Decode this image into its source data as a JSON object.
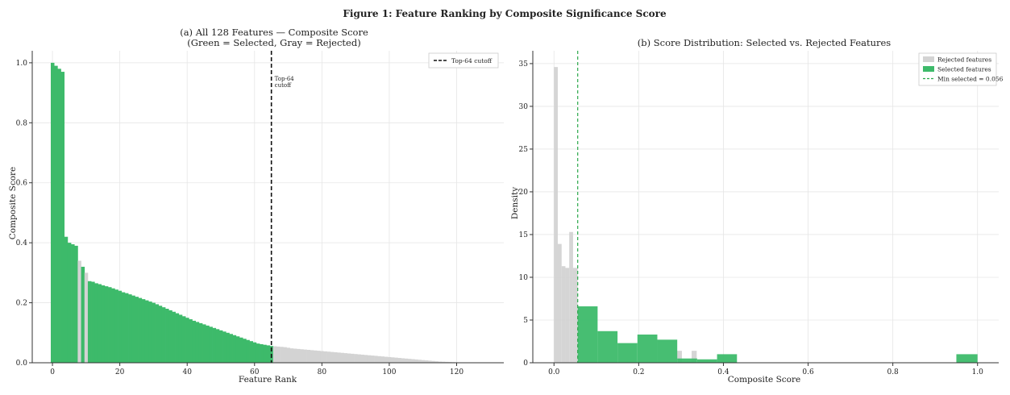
{
  "figure": {
    "title": "Figure 1: Feature Ranking by Composite Significance Score"
  },
  "colors": {
    "selected": "#3dba6a",
    "rejected": "#d3d3d3",
    "cutoff": "#111111",
    "min_line": "#2aa84a",
    "grid": "#e6e6e6",
    "axis": "#333333"
  },
  "chart_data": [
    {
      "type": "bar",
      "title_line1": "(a) All 128 Features — Composite Score",
      "title_line2": "(Green = Selected, Gray = Rejected)",
      "xlabel": "Feature Rank",
      "ylabel": "Composite Score",
      "xlim": [
        -6,
        134
      ],
      "ylim": [
        0,
        1.04
      ],
      "xticks": [
        0,
        20,
        40,
        60,
        80,
        100,
        120
      ],
      "yticks": [
        0.0,
        0.2,
        0.4,
        0.6,
        0.8,
        1.0
      ],
      "grid": true,
      "legend": {
        "position": "top-right",
        "entries": [
          "Top-64 cutoff"
        ]
      },
      "cutoff_rank": 65,
      "annotation": [
        "Top-64",
        "cutoff"
      ],
      "series": [
        {
          "name": "Selected",
          "color": "#3dba6a"
        },
        {
          "name": "Rejected",
          "color": "#d3d3d3"
        }
      ],
      "ranks": [
        0,
        1,
        2,
        3,
        4,
        5,
        6,
        7,
        8,
        9,
        10,
        11,
        12,
        13,
        14,
        15,
        16,
        17,
        18,
        19,
        20,
        21,
        22,
        23,
        24,
        25,
        26,
        27,
        28,
        29,
        30,
        31,
        32,
        33,
        34,
        35,
        36,
        37,
        38,
        39,
        40,
        41,
        42,
        43,
        44,
        45,
        46,
        47,
        48,
        49,
        50,
        51,
        52,
        53,
        54,
        55,
        56,
        57,
        58,
        59,
        60,
        61,
        62,
        63,
        64,
        65,
        66,
        67,
        68,
        69,
        70,
        71,
        72,
        73,
        74,
        75,
        76,
        77,
        78,
        79,
        80,
        81,
        82,
        83,
        84,
        85,
        86,
        87,
        88,
        89,
        90,
        91,
        92,
        93,
        94,
        95,
        96,
        97,
        98,
        99,
        100,
        101,
        102,
        103,
        104,
        105,
        106,
        107,
        108,
        109,
        110,
        111,
        112,
        113,
        114,
        115,
        116,
        117,
        118,
        119,
        120,
        121,
        122,
        123,
        124,
        125,
        126,
        127
      ],
      "values": [
        1.0,
        0.99,
        0.98,
        0.97,
        0.42,
        0.4,
        0.395,
        0.39,
        0.34,
        0.32,
        0.3,
        0.272,
        0.27,
        0.265,
        0.262,
        0.258,
        0.255,
        0.252,
        0.248,
        0.244,
        0.24,
        0.235,
        0.232,
        0.228,
        0.224,
        0.22,
        0.216,
        0.212,
        0.208,
        0.204,
        0.2,
        0.195,
        0.19,
        0.185,
        0.18,
        0.175,
        0.17,
        0.165,
        0.16,
        0.155,
        0.15,
        0.145,
        0.14,
        0.136,
        0.132,
        0.128,
        0.124,
        0.12,
        0.116,
        0.112,
        0.108,
        0.104,
        0.1,
        0.096,
        0.092,
        0.088,
        0.084,
        0.08,
        0.076,
        0.072,
        0.068,
        0.064,
        0.062,
        0.06,
        0.058,
        0.056,
        0.055,
        0.054,
        0.053,
        0.052,
        0.05,
        0.048,
        0.047,
        0.046,
        0.045,
        0.044,
        0.043,
        0.042,
        0.041,
        0.04,
        0.039,
        0.038,
        0.037,
        0.036,
        0.035,
        0.034,
        0.033,
        0.032,
        0.031,
        0.03,
        0.029,
        0.028,
        0.027,
        0.026,
        0.025,
        0.024,
        0.023,
        0.022,
        0.021,
        0.02,
        0.019,
        0.018,
        0.017,
        0.016,
        0.015,
        0.014,
        0.013,
        0.012,
        0.011,
        0.01,
        0.009,
        0.008,
        0.007,
        0.006,
        0.005,
        0.004,
        0.0035,
        0.003,
        0.0025,
        0.002,
        0.0015,
        0.001,
        0.0008,
        0.0006,
        0.0004,
        0.0003,
        0.0002,
        0.0001
      ],
      "selected": [
        true,
        true,
        true,
        true,
        true,
        true,
        true,
        true,
        false,
        true,
        false,
        true,
        true,
        true,
        true,
        true,
        true,
        true,
        true,
        true,
        true,
        true,
        true,
        true,
        true,
        true,
        true,
        true,
        true,
        true,
        true,
        true,
        true,
        true,
        true,
        true,
        true,
        true,
        true,
        true,
        true,
        true,
        true,
        true,
        true,
        true,
        true,
        true,
        true,
        true,
        true,
        true,
        true,
        true,
        true,
        true,
        true,
        true,
        true,
        true,
        true,
        true,
        true,
        true,
        true,
        true,
        false,
        false,
        false,
        false,
        false,
        false,
        false,
        false,
        false,
        false,
        false,
        false,
        false,
        false,
        false,
        false,
        false,
        false,
        false,
        false,
        false,
        false,
        false,
        false,
        false,
        false,
        false,
        false,
        false,
        false,
        false,
        false,
        false,
        false,
        false,
        false,
        false,
        false,
        false,
        false,
        false,
        false,
        false,
        false,
        false,
        false,
        false,
        false,
        false,
        false,
        false,
        false,
        false,
        false,
        false,
        false,
        false,
        false,
        false,
        false,
        false,
        false
      ]
    },
    {
      "type": "histogram",
      "title": "(b) Score Distribution: Selected vs. Rejected Features",
      "xlabel": "Composite Score",
      "ylabel": "Density",
      "xlim": [
        -0.05,
        1.05
      ],
      "ylim": [
        0,
        36.5
      ],
      "xticks": [
        0.0,
        0.2,
        0.4,
        0.6,
        0.8,
        1.0
      ],
      "yticks": [
        0,
        5,
        10,
        15,
        20,
        25,
        30,
        35
      ],
      "grid": true,
      "legend": {
        "position": "top-right",
        "entries": [
          "Rejected features",
          "Selected features",
          "Min selected = 0.056"
        ]
      },
      "min_selected": 0.056,
      "series": [
        {
          "name": "Rejected features",
          "color": "#d3d3d3",
          "bins": [
            {
              "x0": 0.0,
              "x1": 0.009,
              "y": 34.6
            },
            {
              "x0": 0.009,
              "x1": 0.018,
              "y": 13.9
            },
            {
              "x0": 0.018,
              "x1": 0.027,
              "y": 11.3
            },
            {
              "x0": 0.027,
              "x1": 0.036,
              "y": 11.1
            },
            {
              "x0": 0.036,
              "x1": 0.045,
              "y": 15.3
            },
            {
              "x0": 0.045,
              "x1": 0.056,
              "y": 11.1
            },
            {
              "x0": 0.29,
              "x1": 0.302,
              "y": 1.4
            },
            {
              "x0": 0.325,
              "x1": 0.337,
              "y": 1.4
            }
          ]
        },
        {
          "name": "Selected features",
          "color": "#3dba6a",
          "bins": [
            {
              "x0": 0.056,
              "x1": 0.103,
              "y": 6.6
            },
            {
              "x0": 0.103,
              "x1": 0.15,
              "y": 3.7
            },
            {
              "x0": 0.15,
              "x1": 0.197,
              "y": 2.3
            },
            {
              "x0": 0.197,
              "x1": 0.244,
              "y": 3.3
            },
            {
              "x0": 0.244,
              "x1": 0.291,
              "y": 2.7
            },
            {
              "x0": 0.291,
              "x1": 0.338,
              "y": 0.5
            },
            {
              "x0": 0.338,
              "x1": 0.385,
              "y": 0.4
            },
            {
              "x0": 0.385,
              "x1": 0.432,
              "y": 1.0
            },
            {
              "x0": 0.95,
              "x1": 1.0,
              "y": 1.0
            }
          ]
        }
      ]
    }
  ]
}
